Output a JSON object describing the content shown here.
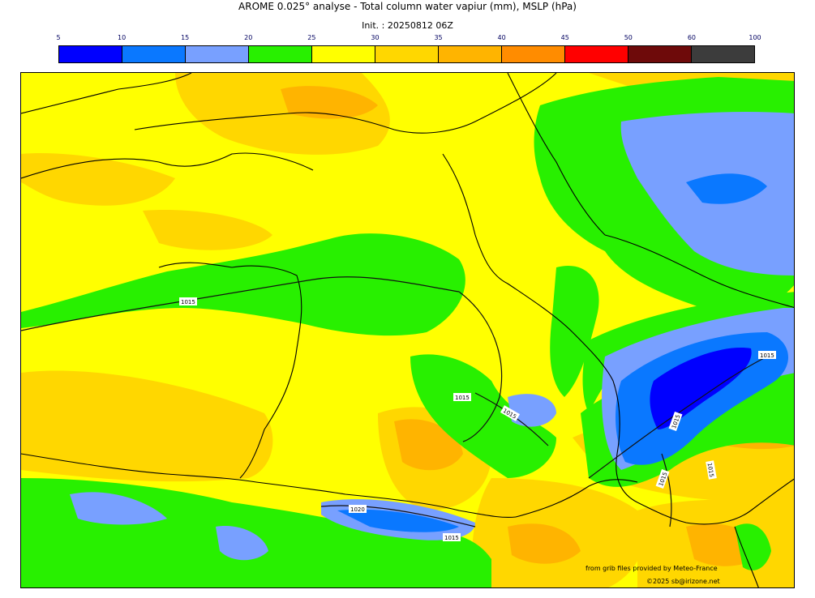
{
  "title": "AROME 0.025° analyse - Total column water vapiur (mm), MSLP (hPa)",
  "init": "Init. : 20250812 06Z",
  "colorbar": {
    "ticks": [
      "5",
      "10",
      "15",
      "20",
      "25",
      "30",
      "35",
      "40",
      "45",
      "50",
      "60",
      "100"
    ],
    "colors": [
      "#0000ff",
      "#0a78ff",
      "#78a0ff",
      "#28f000",
      "#ffff00",
      "#ffd700",
      "#ffb400",
      "#ff8c00",
      "#ff0000",
      "#6e0a0a",
      "#3c3c3c"
    ]
  },
  "map": {
    "field_colors": {
      "yellow": "#ffff00",
      "gold": "#ffd700",
      "orange": "#ffb400",
      "green": "#28f000",
      "lightblue": "#78a0ff",
      "blue": "#0a78ff",
      "darkblue": "#0000ff"
    },
    "isobar_labels": [
      "1015",
      "1015",
      "1015",
      "1015",
      "1015",
      "1015",
      "1015",
      "1020",
      "1015",
      "1015"
    ]
  },
  "credits": {
    "source": "from grib files provided by Meteo-France",
    "copyright": "©2025 sb@irizone.net"
  }
}
